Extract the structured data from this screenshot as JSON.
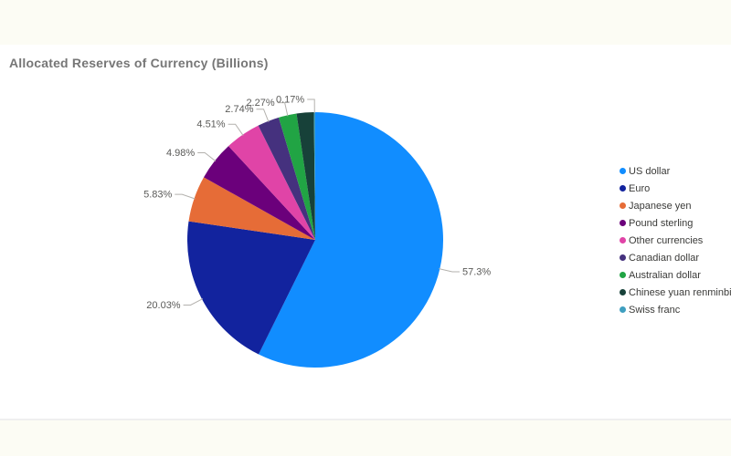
{
  "page": {
    "top_band_color": "#FCFCF4",
    "bottom_band_color": "#FCFCF4",
    "divider_color": "#EFEFEF",
    "background_color": "#FFFFFF"
  },
  "chart": {
    "title": "Allocated Reserves of Currency (Billions)",
    "title_color": "#767676",
    "label_color": "#5A5A58",
    "leader_line_color": "#B3B1AD",
    "legend_text_color": "#3A3A38"
  },
  "chart_data": {
    "type": "pie",
    "title": "Allocated Reserves of Currency (Billions)",
    "legend_position": "right",
    "start_angle_deg": 0,
    "direction": "clockwise",
    "slices": [
      {
        "label": "US dollar",
        "value_pct": 57.3,
        "display_label": "57.3%",
        "color": "#118DFF",
        "label_visible": true
      },
      {
        "label": "Euro",
        "value_pct": 20.03,
        "display_label": "20.03%",
        "color": "#12239E",
        "label_visible": true
      },
      {
        "label": "Japanese yen",
        "value_pct": 5.83,
        "display_label": "5.83%",
        "color": "#E66C37",
        "label_visible": true
      },
      {
        "label": "Pound sterling",
        "value_pct": 4.98,
        "display_label": "4.98%",
        "color": "#6B007B",
        "label_visible": true
      },
      {
        "label": "Other currencies",
        "value_pct": 4.51,
        "display_label": "4.51%",
        "color": "#E044A7",
        "label_visible": true
      },
      {
        "label": "Canadian dollar",
        "value_pct": 2.74,
        "display_label": "2.74%",
        "color": "#45317E",
        "label_visible": true
      },
      {
        "label": "Australian dollar",
        "value_pct": 2.27,
        "display_label": "2.27%",
        "color": "#21A444",
        "label_visible": true
      },
      {
        "label": "Chinese yuan renminbi",
        "value_pct": 2.17,
        "display_label": "",
        "color": "#174139",
        "label_visible": false
      },
      {
        "label": "Swiss franc",
        "value_pct": 0.17,
        "display_label": "0.17%",
        "color": "#3F9FC0",
        "label_visible": true
      }
    ]
  }
}
